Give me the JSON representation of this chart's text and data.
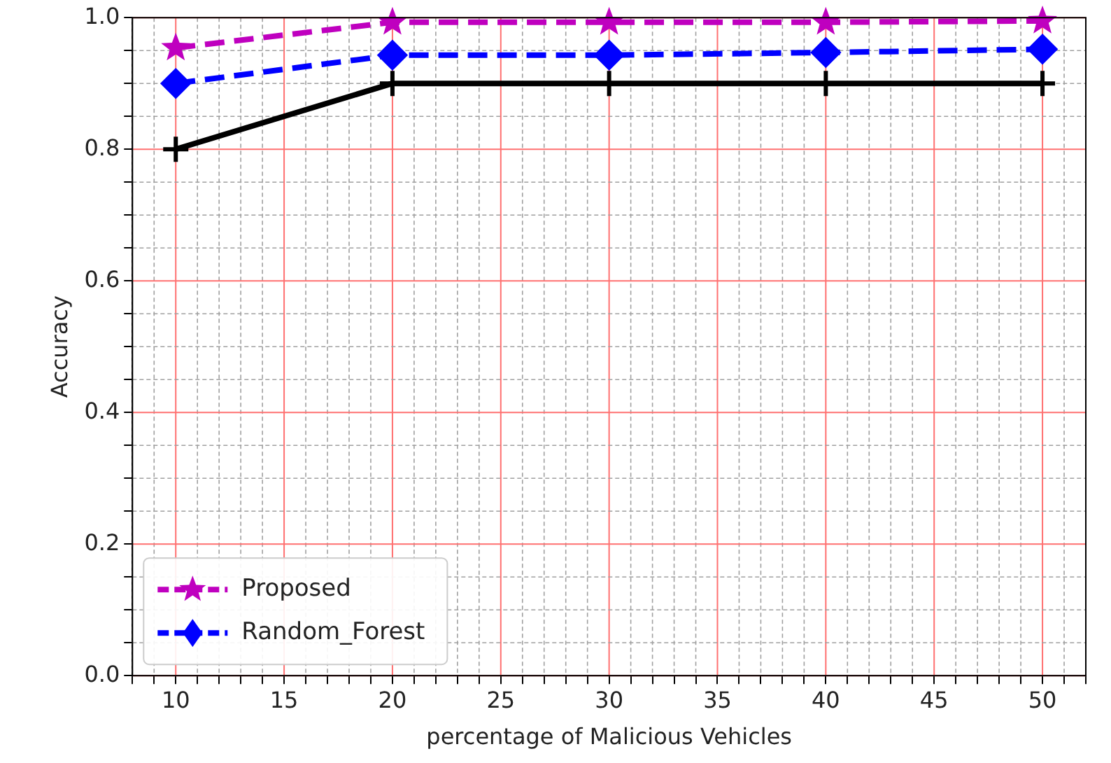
{
  "chart_data": {
    "type": "line",
    "xlabel": "percentage of Malicious Vehicles",
    "ylabel": "Accuracy",
    "x": [
      10,
      20,
      30,
      40,
      50
    ],
    "series": [
      {
        "name": "Proposed",
        "color": "#bf00bf",
        "values": [
          0.954,
          0.993,
          0.993,
          0.993,
          0.995
        ],
        "marker": "star",
        "line_style": "dashed"
      },
      {
        "color": "#000000",
        "values": [
          0.8,
          0.9,
          0.9,
          0.9,
          0.9
        ],
        "marker": "cross",
        "line_style": "solid"
      },
      {
        "name": "Random_Forest",
        "color": "#0000ff",
        "values": [
          0.9,
          0.943,
          0.943,
          0.947,
          0.952
        ],
        "marker": "diamond",
        "line_style": "dashed"
      }
    ],
    "xlim": [
      8,
      52
    ],
    "xticks": [
      {
        "value": 8,
        "label": null
      },
      {
        "value": 9,
        "label": null
      },
      10,
      {
        "value": 11,
        "label": null
      },
      {
        "value": 12,
        "label": null
      },
      {
        "value": 13,
        "label": null
      },
      {
        "value": 14,
        "label": null
      },
      15,
      {
        "value": 16,
        "label": null
      },
      {
        "value": 17,
        "label": null
      },
      {
        "value": 18,
        "label": null
      },
      {
        "value": 19,
        "label": null
      },
      20,
      {
        "value": 21,
        "label": null
      },
      {
        "value": 22,
        "label": null
      },
      {
        "value": 23,
        "label": null
      },
      {
        "value": 24,
        "label": null
      },
      25,
      {
        "value": 26,
        "label": null
      },
      {
        "value": 27,
        "label": null
      },
      {
        "value": 28,
        "label": null
      },
      {
        "value": 29,
        "label": null
      },
      30,
      {
        "value": 31,
        "label": null
      },
      {
        "value": 32,
        "label": null
      },
      {
        "value": 33,
        "label": null
      },
      {
        "value": 34,
        "label": null
      },
      35,
      {
        "value": 36,
        "label": null
      },
      {
        "value": 37,
        "label": null
      },
      {
        "value": 38,
        "label": null
      },
      {
        "value": 39,
        "label": null
      },
      40,
      {
        "value": 41,
        "label": null
      },
      {
        "value": 42,
        "label": null
      },
      {
        "value": 43,
        "label": null
      },
      {
        "value": 44,
        "label": null
      },
      45,
      {
        "value": 46,
        "label": null
      },
      {
        "value": 47,
        "label": null
      },
      {
        "value": 48,
        "label": null
      },
      {
        "value": 49,
        "label": null
      },
      50,
      {
        "value": 51,
        "label": null
      },
      {
        "value": 52,
        "label": null
      }
    ],
    "ylim": [
      0,
      1
    ],
    "yticks": [
      {
        "value": 0,
        "label": "0.0"
      },
      {
        "value": 0.05,
        "label": null
      },
      {
        "value": 0.1,
        "label": null
      },
      {
        "value": 0.15,
        "label": null
      },
      {
        "value": 0.2,
        "label": "0.2"
      },
      {
        "value": 0.25,
        "label": null
      },
      {
        "value": 0.3,
        "label": null
      },
      {
        "value": 0.35,
        "label": null
      },
      {
        "value": 0.4,
        "label": "0.4"
      },
      {
        "value": 0.45,
        "label": null
      },
      {
        "value": 0.5,
        "label": null
      },
      {
        "value": 0.55,
        "label": null
      },
      {
        "value": 0.6,
        "label": "0.6"
      },
      {
        "value": 0.65,
        "label": null
      },
      {
        "value": 0.7,
        "label": null
      },
      {
        "value": 0.75,
        "label": null
      },
      {
        "value": 0.8,
        "label": "0.8"
      },
      {
        "value": 0.85,
        "label": null
      },
      {
        "value": 0.9,
        "label": null
      },
      {
        "value": 0.95,
        "label": null
      },
      {
        "value": 1,
        "label": "1.0"
      }
    ],
    "grid": true,
    "legend": "bottom left"
  }
}
